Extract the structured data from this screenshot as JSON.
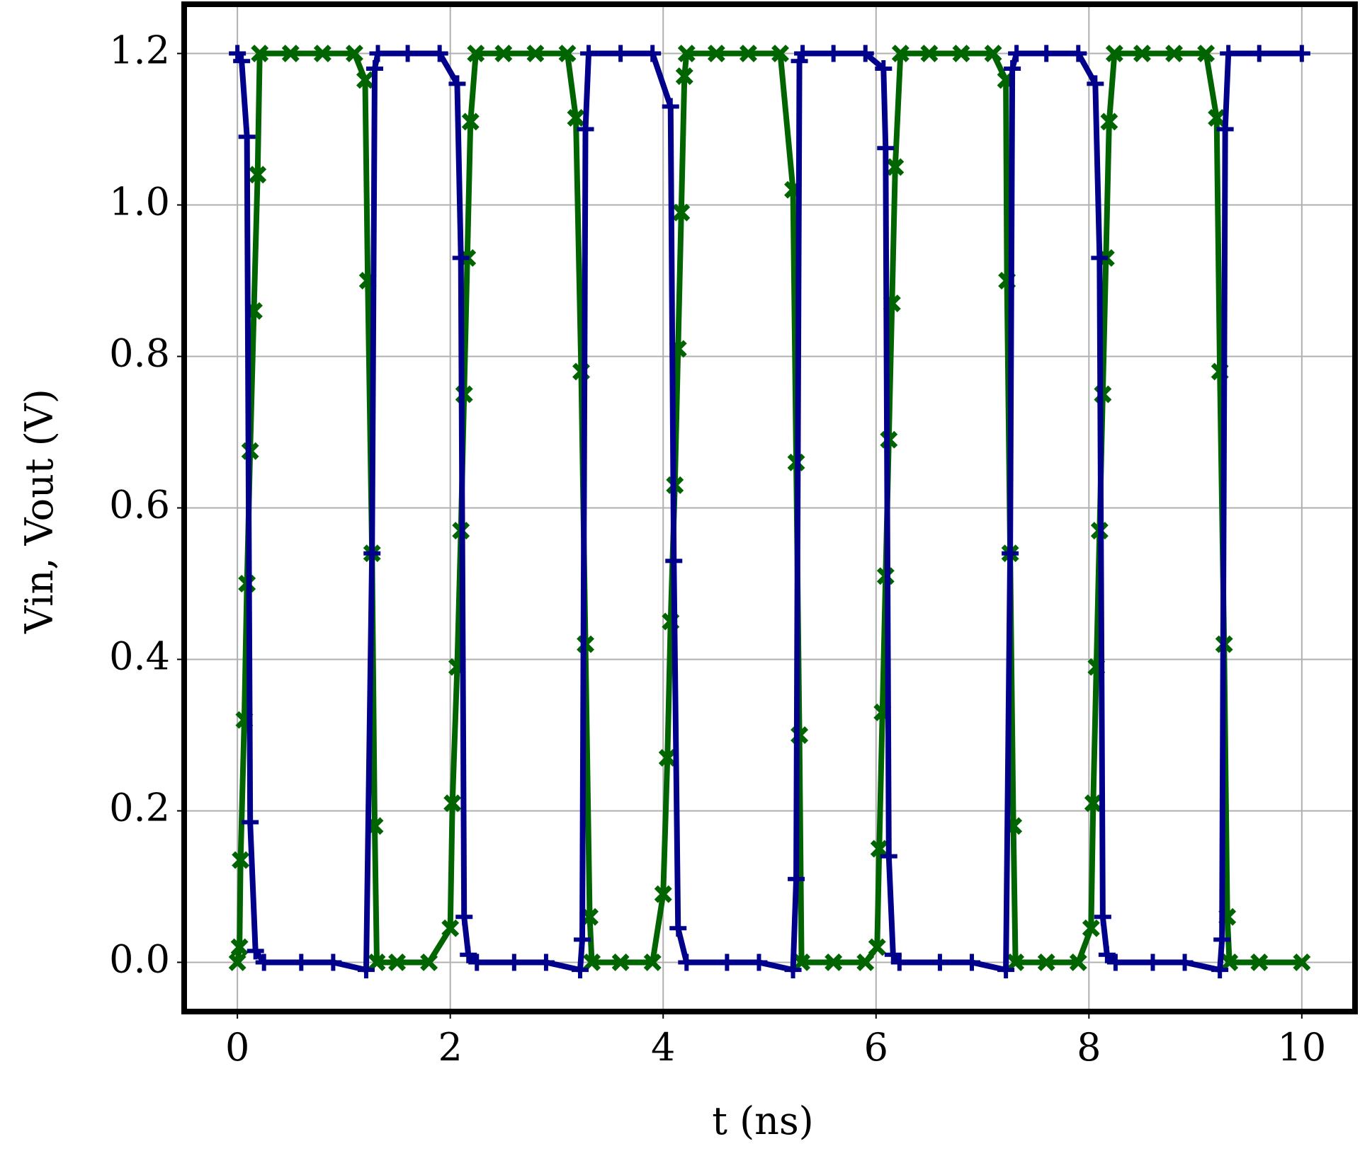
{
  "chart_data": {
    "type": "line",
    "xlabel": "t (ns)",
    "ylabel": "Vin, Vout (V)",
    "xlim": [
      -0.5,
      10.5
    ],
    "ylim": [
      -0.065,
      1.265
    ],
    "xticks": [
      0,
      2,
      4,
      6,
      8,
      10
    ],
    "yticks": [
      {
        "value": 0,
        "label": "0.0"
      },
      {
        "value": 0.2,
        "label": "0.2"
      },
      {
        "value": 0.4,
        "label": "0.4"
      },
      {
        "value": 0.6,
        "label": "0.6"
      },
      {
        "value": 0.8,
        "label": "0.8"
      },
      {
        "value": 1,
        "label": "1.0"
      },
      {
        "value": 1.2,
        "label": "1.2"
      }
    ],
    "grid": true,
    "series": [
      {
        "color": "#006400",
        "marker": "x",
        "x": [
          0,
          0.02,
          0.03,
          0.065,
          0.09,
          0.12,
          0.155,
          0.19,
          0.21,
          0.5,
          0.8,
          1.1,
          1.2,
          1.225,
          1.265,
          1.29,
          1.31,
          1.5,
          1.8,
          2.0,
          2.02,
          2.065,
          2.1,
          2.13,
          2.16,
          2.19,
          2.24,
          2.5,
          2.8,
          3.1,
          3.18,
          3.23,
          3.27,
          3.31,
          3.33,
          3.6,
          3.9,
          4.0,
          4.04,
          4.07,
          4.11,
          4.14,
          4.17,
          4.2,
          4.22,
          4.5,
          4.8,
          5.1,
          5.22,
          5.25,
          5.28,
          5.3,
          5.6,
          5.9,
          6.01,
          6.03,
          6.06,
          6.09,
          6.12,
          6.15,
          6.18,
          6.23,
          6.5,
          6.8,
          7.1,
          7.22,
          7.23,
          7.26,
          7.29,
          7.31,
          7.6,
          7.9,
          8.02,
          8.04,
          8.07,
          8.1,
          8.13,
          8.16,
          8.19,
          8.24,
          8.5,
          8.8,
          9.1,
          9.2,
          9.23,
          9.27,
          9.3,
          9.32,
          9.6,
          10.0
        ],
        "values": [
          0,
          0.02,
          0.135,
          0.32,
          0.5,
          0.675,
          0.86,
          1.04,
          1.2,
          1.2,
          1.2,
          1.2,
          1.165,
          0.9,
          0.54,
          0.18,
          0,
          0,
          0,
          0.045,
          0.21,
          0.39,
          0.57,
          0.75,
          0.93,
          1.11,
          1.2,
          1.2,
          1.2,
          1.2,
          1.115,
          0.78,
          0.42,
          0.06,
          0,
          0,
          0,
          0.09,
          0.27,
          0.45,
          0.63,
          0.81,
          0.99,
          1.17,
          1.2,
          1.2,
          1.2,
          1.2,
          1.02,
          0.66,
          0.3,
          0,
          0,
          0,
          0.02,
          0.15,
          0.33,
          0.51,
          0.69,
          0.87,
          1.05,
          1.2,
          1.2,
          1.2,
          1.2,
          1.165,
          0.9,
          0.54,
          0.18,
          0,
          0,
          0,
          0.045,
          0.21,
          0.39,
          0.57,
          0.75,
          0.93,
          1.11,
          1.2,
          1.2,
          1.2,
          1.2,
          1.115,
          0.78,
          0.42,
          0.06,
          0,
          0,
          0
        ]
      },
      {
        "color": "#00008b",
        "marker": "+",
        "x": [
          0,
          0.04,
          0.09,
          0.12,
          0.17,
          0.25,
          0.6,
          0.9,
          1.21,
          1.265,
          1.29,
          1.32,
          1.6,
          1.9,
          2.065,
          2.1,
          2.13,
          2.17,
          2.25,
          2.6,
          2.9,
          3.22,
          3.24,
          3.27,
          3.3,
          3.6,
          3.9,
          4.07,
          4.1,
          4.14,
          4.22,
          4.6,
          4.9,
          5.22,
          5.25,
          5.28,
          5.31,
          5.6,
          5.9,
          6.07,
          6.09,
          6.12,
          6.16,
          6.22,
          6.6,
          6.9,
          7.22,
          7.26,
          7.28,
          7.32,
          7.6,
          7.9,
          8.06,
          8.1,
          8.13,
          8.17,
          8.25,
          8.6,
          8.9,
          9.23,
          9.25,
          9.28,
          9.31,
          9.6,
          10.0
        ],
        "values": [
          1.2,
          1.19,
          1.09,
          0.185,
          0.015,
          0,
          0,
          0,
          -0.01,
          0.54,
          1.18,
          1.2,
          1.2,
          1.2,
          1.16,
          0.93,
          0.06,
          0.01,
          0,
          0,
          0,
          -0.01,
          0.03,
          1.1,
          1.2,
          1.2,
          1.2,
          1.13,
          0.53,
          0.045,
          0,
          0,
          0,
          -0.01,
          0.11,
          1.19,
          1.2,
          1.2,
          1.2,
          1.18,
          1.075,
          0.14,
          0.01,
          0,
          0,
          0,
          -0.01,
          0.54,
          1.18,
          1.2,
          1.2,
          1.2,
          1.16,
          0.93,
          0.06,
          0.01,
          0,
          0,
          0,
          -0.01,
          0.03,
          1.1,
          1.2,
          1.2,
          1.2
        ]
      }
    ]
  }
}
